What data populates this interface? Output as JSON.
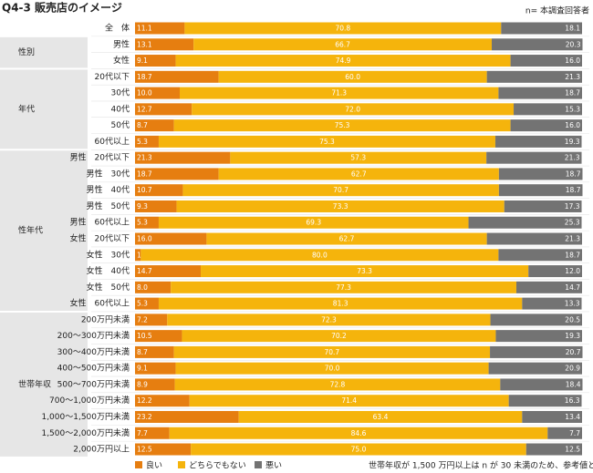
{
  "chart_data": {
    "type": "stacked-bar-horizontal",
    "title": "Q4-3 販売店のイメージ",
    "note": "n= 本調査回答者",
    "footnote": "世帯年収が 1,500 万円以上は n が 30 未満のため、参考値として記載",
    "categories": [
      "全　体",
      "男性",
      "女性",
      "20代以下",
      "30代",
      "40代",
      "50代",
      "60代以上",
      "男性　20代以下",
      "男性　30代",
      "男性　40代",
      "男性　50代",
      "男性　60代以上",
      "女性　20代以下",
      "女性　30代",
      "女性　40代",
      "女性　50代",
      "女性　60代以上",
      "200万円未満",
      "200～300万円未満",
      "300～400万円未満",
      "400～500万円未満",
      "500～700万円未満",
      "700～1,000万円未満",
      "1,000～1,500万円未満",
      "1,500～2,000万円未満",
      "2,000万円以上"
    ],
    "category_groups": [
      null,
      "性別",
      "性別",
      "年代",
      "年代",
      "年代",
      "年代",
      "年代",
      "性年代",
      "性年代",
      "性年代",
      "性年代",
      "性年代",
      "性年代",
      "性年代",
      "性年代",
      "性年代",
      "性年代",
      "世帯年収",
      "世帯年収",
      "世帯年収",
      "世帯年収",
      "世帯年収",
      "世帯年収",
      "世帯年収",
      "世帯年収",
      "世帯年収"
    ],
    "xlim": [
      0,
      100
    ],
    "series": [
      {
        "name": "良い",
        "color": "#e67e10",
        "values": [
          11.1,
          13.1,
          9.1,
          18.7,
          10.0,
          12.7,
          8.7,
          5.3,
          21.3,
          18.7,
          10.7,
          9.3,
          5.3,
          16.0,
          1.3,
          14.7,
          8.0,
          5.3,
          7.2,
          10.5,
          8.7,
          9.1,
          8.9,
          12.2,
          23.2,
          7.7,
          12.5
        ],
        "value_labels": [
          "11.1",
          "13.1",
          "9.1",
          "18.7",
          "10.0",
          "12.7",
          "8.7",
          "5.3",
          "21.3",
          "18.7",
          "10.7",
          "9.3",
          "5.3",
          "16.0",
          "1.3",
          "14.7",
          "8.0",
          "5.3",
          "7.2",
          "10.5",
          "8.7",
          "9.1",
          "8.9",
          "12.2",
          "23.2",
          "7.7",
          "12.5"
        ]
      },
      {
        "name": "どちらでもない",
        "color": "#f5b40c",
        "values": [
          70.8,
          66.7,
          74.9,
          60.0,
          71.3,
          72.0,
          75.3,
          75.3,
          57.3,
          62.7,
          70.7,
          73.3,
          69.3,
          62.7,
          80.0,
          73.3,
          77.3,
          81.3,
          72.3,
          70.2,
          70.7,
          70.0,
          72.8,
          71.4,
          63.4,
          84.6,
          75.0
        ],
        "value_labels": [
          "70.8",
          "66.7",
          "74.9",
          "60.0",
          "71.3",
          "72.0",
          "75.3",
          "75.3",
          "57.3",
          "62.7",
          "70.7",
          "73.3",
          "69.3",
          "62.7",
          "80.0",
          "73.3",
          "77.3",
          "81.3",
          "72.3",
          "70.2",
          "70.7",
          "70.0",
          "72.8",
          "71.4",
          "63.4",
          "84.6",
          "75.0"
        ]
      },
      {
        "name": "悪い",
        "color": "#737373",
        "values": [
          18.1,
          20.3,
          16.0,
          21.3,
          18.7,
          15.3,
          16.0,
          19.3,
          21.3,
          18.7,
          18.7,
          17.3,
          25.3,
          21.3,
          18.7,
          12.0,
          14.7,
          13.3,
          20.5,
          19.3,
          20.7,
          20.9,
          18.4,
          16.3,
          13.4,
          7.7,
          12.5
        ],
        "value_labels": [
          "18.1",
          "20.3",
          "16.0",
          "21.3",
          "18.7",
          "15.3",
          "16.0",
          "19.3",
          "21.3",
          "18.7",
          "18.7",
          "17.3",
          "25.3",
          "21.3",
          "18.7",
          "12.0",
          "14.7",
          "13.3",
          "20.5",
          "19.3",
          "20.7",
          "20.9",
          "18.4",
          "16.3",
          "13.4",
          "7.7",
          "12.5"
        ]
      }
    ]
  }
}
